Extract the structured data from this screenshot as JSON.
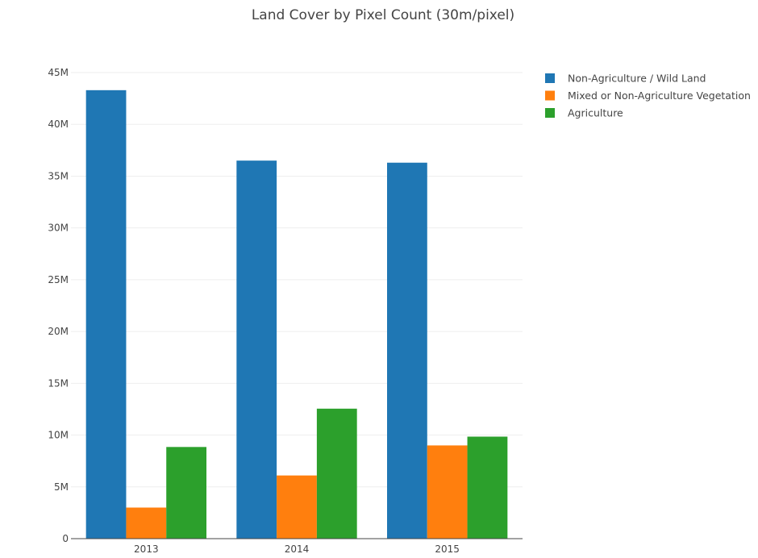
{
  "chart_data": {
    "type": "bar",
    "title": "Land Cover by Pixel Count (30m/pixel)",
    "xlabel": "",
    "ylabel": "",
    "categories": [
      "2013",
      "2014",
      "2015"
    ],
    "series": [
      {
        "name": "Non-Agriculture / Wild Land",
        "color": "#1f77b4",
        "values": [
          43300000,
          36500000,
          36300000
        ]
      },
      {
        "name": "Mixed or Non-Agriculture Vegetation",
        "color": "#ff7f0e",
        "values": [
          3000000,
          6100000,
          9000000
        ]
      },
      {
        "name": "Agriculture",
        "color": "#2ca02c",
        "values": [
          8850000,
          12550000,
          9850000
        ]
      }
    ],
    "ylim": [
      0,
      45000000
    ],
    "yticks": [
      0,
      5000000,
      10000000,
      15000000,
      20000000,
      25000000,
      30000000,
      35000000,
      40000000,
      45000000
    ],
    "ytick_labels": [
      "0",
      "5M",
      "10M",
      "15M",
      "20M",
      "25M",
      "30M",
      "35M",
      "40M",
      "45M"
    ],
    "grid": true,
    "legend_position": "top-right"
  }
}
